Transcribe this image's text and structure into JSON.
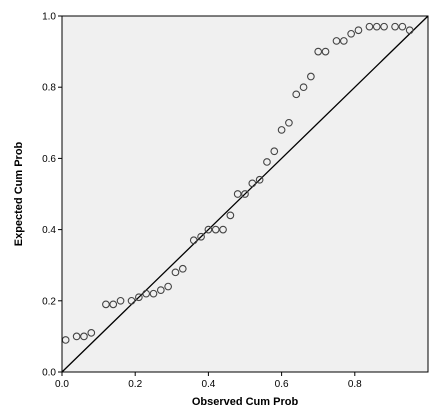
{
  "chart_data": {
    "type": "scatter",
    "title": "",
    "xlabel": "Observed Cum Prob",
    "ylabel": "Expected Cum Prob",
    "xlim": [
      0,
      1
    ],
    "ylim": [
      0,
      1
    ],
    "x_ticks": [
      "0.0",
      "0.2",
      "0.4",
      "0.6",
      "0.8"
    ],
    "y_ticks": [
      "0.0",
      "0.2",
      "0.4",
      "0.6",
      "0.8",
      "1.0"
    ],
    "grid": false,
    "reference_line": {
      "from": [
        0,
        0
      ],
      "to": [
        1,
        1
      ]
    },
    "colors": {
      "plot_background": "#f0f0f0",
      "marker_stroke": "#444444",
      "line": "#000000"
    },
    "series": [
      {
        "x": [
          0.01,
          0.04,
          0.06,
          0.08,
          0.12,
          0.14,
          0.16,
          0.19,
          0.21,
          0.23,
          0.25,
          0.27,
          0.29,
          0.31,
          0.33,
          0.36,
          0.38,
          0.4,
          0.42,
          0.44,
          0.46,
          0.48,
          0.5,
          0.52,
          0.54,
          0.56,
          0.58,
          0.6,
          0.62,
          0.64,
          0.66,
          0.68,
          0.7,
          0.72,
          0.75,
          0.77,
          0.79,
          0.81,
          0.84,
          0.86,
          0.88,
          0.91,
          0.93,
          0.95
        ],
        "y": [
          0.09,
          0.1,
          0.1,
          0.11,
          0.19,
          0.19,
          0.2,
          0.2,
          0.21,
          0.22,
          0.22,
          0.23,
          0.24,
          0.28,
          0.29,
          0.37,
          0.38,
          0.4,
          0.4,
          0.4,
          0.44,
          0.5,
          0.5,
          0.53,
          0.54,
          0.59,
          0.62,
          0.68,
          0.7,
          0.78,
          0.8,
          0.83,
          0.9,
          0.9,
          0.93,
          0.93,
          0.95,
          0.96,
          0.97,
          0.97,
          0.97,
          0.97,
          0.97,
          0.96
        ]
      }
    ]
  }
}
